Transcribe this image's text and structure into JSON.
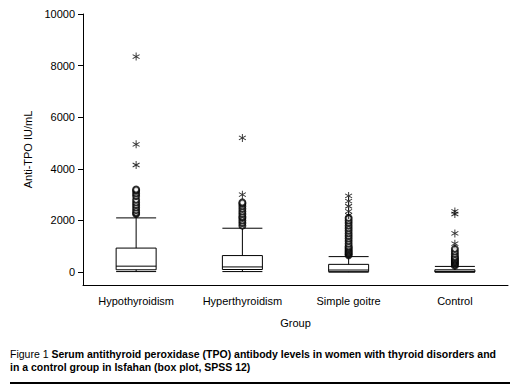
{
  "chart_data": {
    "type": "boxplot",
    "x_label": "Group",
    "y_label": "Anti-TPO IU/mL",
    "categories": [
      "Hypothyroidism",
      "Hyperthyroidism",
      "Simple goitre",
      "Control"
    ],
    "values": [
      [
        20,
        90,
        230,
        930,
        2100
      ],
      [
        20,
        100,
        200,
        640,
        1700
      ],
      [
        0,
        15,
        80,
        300,
        600
      ],
      [
        0,
        5,
        30,
        90,
        220
      ]
    ],
    "outliers": [
      [
        0,
        2250
      ],
      [
        0,
        2300
      ],
      [
        0,
        2400
      ],
      [
        0,
        2500
      ],
      [
        0,
        2600
      ],
      [
        0,
        2700
      ],
      [
        0,
        2800
      ],
      [
        0,
        2950
      ],
      [
        0,
        3050
      ],
      [
        0,
        3150
      ],
      [
        0,
        3200
      ],
      [
        1,
        1800
      ],
      [
        1,
        1900
      ],
      [
        1,
        2000
      ],
      [
        1,
        2100
      ],
      [
        1,
        2150
      ],
      [
        1,
        2250
      ],
      [
        1,
        2350
      ],
      [
        1,
        2450
      ],
      [
        1,
        2550
      ],
      [
        1,
        2650
      ],
      [
        1,
        2700
      ],
      [
        2,
        650
      ],
      [
        2,
        700
      ],
      [
        2,
        750
      ],
      [
        2,
        800
      ],
      [
        2,
        850
      ],
      [
        2,
        900
      ],
      [
        2,
        950
      ],
      [
        2,
        1000
      ],
      [
        2,
        1100
      ],
      [
        2,
        1200
      ],
      [
        2,
        1300
      ],
      [
        2,
        1400
      ],
      [
        2,
        1500
      ],
      [
        2,
        1600
      ],
      [
        2,
        1700
      ],
      [
        2,
        1800
      ],
      [
        2,
        1900
      ],
      [
        2,
        2000
      ],
      [
        2,
        2100
      ],
      [
        3,
        250
      ],
      [
        3,
        300
      ],
      [
        3,
        350
      ],
      [
        3,
        400
      ],
      [
        3,
        450
      ],
      [
        3,
        500
      ],
      [
        3,
        550
      ],
      [
        3,
        600
      ],
      [
        3,
        700
      ],
      [
        3,
        800
      ],
      [
        3,
        900
      ]
    ],
    "extremes": [
      [
        0,
        4150
      ],
      [
        0,
        4950
      ],
      [
        0,
        8350
      ],
      [
        1,
        3000
      ],
      [
        1,
        5200
      ],
      [
        2,
        2200
      ],
      [
        2,
        2350
      ],
      [
        2,
        2550
      ],
      [
        2,
        2750
      ],
      [
        2,
        2950
      ],
      [
        3,
        1100
      ],
      [
        3,
        1500
      ],
      [
        3,
        2250
      ],
      [
        3,
        2350
      ]
    ],
    "ylim": [
      -500,
      10000
    ],
    "yticks": [
      0,
      2000,
      4000,
      6000,
      8000,
      10000
    ],
    "grid": false,
    "color": "#000000",
    "caption_label": "Figure 1",
    "caption": "Serum antithyroid peroxidase (TPO) antibody levels in women with thyroid disorders and in a control group in Isfahan (box plot, SPSS 12)"
  }
}
